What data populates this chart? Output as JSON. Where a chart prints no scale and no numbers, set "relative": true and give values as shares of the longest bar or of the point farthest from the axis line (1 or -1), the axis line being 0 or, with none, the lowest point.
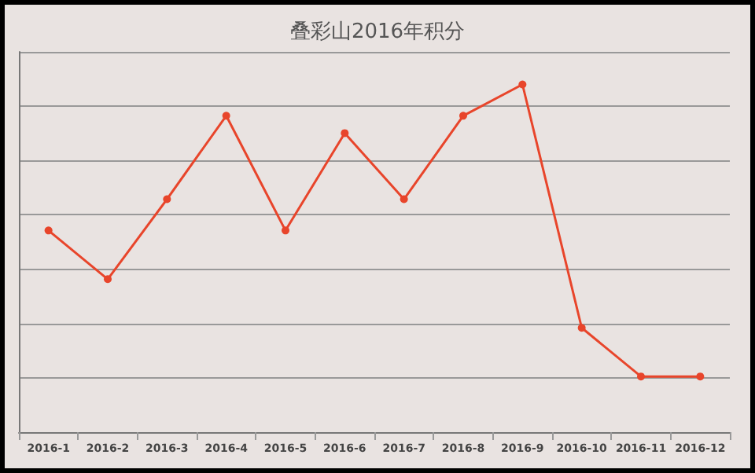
{
  "chart_data": {
    "type": "line",
    "title": "叠彩山2016年积分",
    "relative": true,
    "grid": "y",
    "marker": "circle",
    "line_style": "solid",
    "categories": [
      "2016-1",
      "2016-2",
      "2016-3",
      "2016-4",
      "2016-5",
      "2016-6",
      "2016-7",
      "2016-8",
      "2016-9",
      "2016-10",
      "2016-11",
      "2016-12"
    ],
    "series": [
      {
        "color": "#e8452b",
        "values": [
          0.58,
          0.44,
          0.67,
          0.91,
          0.58,
          0.86,
          0.67,
          0.91,
          1,
          0.3,
          0.16,
          0.16
        ]
      }
    ]
  }
}
